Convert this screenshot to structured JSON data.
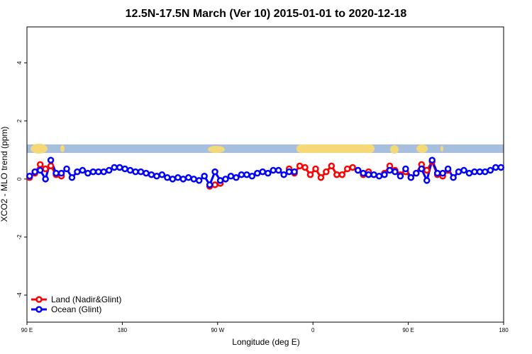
{
  "chart_data": {
    "type": "line",
    "title": "12.5N-17.5N March (Ver 10)   2015-01-01 to 2020-12-18",
    "x_label": "Longitude (deg E)",
    "y_label": "XCO2 - MLO trend (ppm)",
    "xlim": [
      90,
      540
    ],
    "ylim": [
      -4.93,
      5.24
    ],
    "xticks": [
      {
        "value": 90,
        "label": "90 E"
      },
      {
        "value": 180,
        "label": "180"
      },
      {
        "value": 270,
        "label": "90 W"
      },
      {
        "value": 360,
        "label": "0"
      },
      {
        "value": 450,
        "label": "90 E"
      },
      {
        "value": 540,
        "label": "180"
      }
    ],
    "yticks": [
      -4,
      -2,
      0,
      2,
      4
    ],
    "legend": "bottom-left",
    "x": [
      92.5,
      97.5,
      102.5,
      107.5,
      112.5,
      117.5,
      122.5,
      127.5,
      132.5,
      137.5,
      142.5,
      147.5,
      152.5,
      157.5,
      162.5,
      167.5,
      172.5,
      177.5,
      182.5,
      187.5,
      192.5,
      197.5,
      202.5,
      207.5,
      212.5,
      217.5,
      222.5,
      227.5,
      232.5,
      237.5,
      242.5,
      247.5,
      252.5,
      257.5,
      262.5,
      267.5,
      272.5,
      277.5,
      282.5,
      287.5,
      292.5,
      297.5,
      302.5,
      307.5,
      312.5,
      317.5,
      322.5,
      327.5,
      332.5,
      337.5,
      342.5,
      347.5,
      352.5,
      357.5,
      362.5,
      367.5,
      372.5,
      377.5,
      382.5,
      387.5,
      392.5,
      397.5,
      402.5,
      407.5,
      412.5,
      417.5,
      422.5,
      427.5,
      432.5,
      437.5,
      442.5,
      447.5,
      452.5,
      457.5,
      462.5,
      467.5,
      472.5,
      477.5,
      482.5,
      487.5,
      492.5,
      497.5,
      502.5,
      507.5,
      512.5,
      517.5,
      522.5,
      527.5,
      532.5,
      537.5
    ],
    "series": [
      {
        "name": "Land (Nadir&Glint)",
        "color": "#ff0000",
        "values": [
          0.05,
          0.2,
          0.5,
          0.35,
          0.45,
          0.15,
          0.1,
          null,
          null,
          null,
          null,
          null,
          null,
          null,
          null,
          null,
          null,
          null,
          null,
          null,
          null,
          null,
          null,
          null,
          null,
          null,
          null,
          null,
          null,
          null,
          null,
          null,
          null,
          null,
          -0.25,
          -0.2,
          -0.15,
          null,
          null,
          null,
          null,
          null,
          null,
          null,
          null,
          null,
          null,
          null,
          null,
          0.35,
          0.2,
          0.45,
          0.4,
          0.15,
          0.35,
          0.05,
          0.25,
          0.45,
          0.15,
          0.15,
          0.35,
          0.4,
          0.3,
          0.15,
          0.25,
          null,
          null,
          0.2,
          0.45,
          0.3,
          0.15,
          0.25,
          0.05,
          0.2,
          0.5,
          0.3,
          0.6,
          0.15,
          0.1,
          0.3,
          null,
          null,
          null,
          null,
          null,
          null,
          null,
          null,
          null,
          null
        ]
      },
      {
        "name": "Ocean (Glint)",
        "color": "#0000ff",
        "values": [
          0.1,
          0.25,
          0.3,
          0.0,
          0.65,
          0.2,
          0.2,
          0.35,
          0.05,
          0.25,
          0.3,
          0.2,
          0.25,
          0.25,
          0.25,
          0.3,
          0.4,
          0.4,
          0.35,
          0.3,
          0.25,
          0.25,
          0.2,
          0.15,
          0.1,
          0.15,
          0.05,
          0.0,
          0.05,
          0.0,
          0.05,
          0.0,
          -0.05,
          0.1,
          -0.2,
          0.25,
          -0.05,
          0.0,
          0.1,
          0.05,
          0.15,
          0.15,
          0.1,
          0.2,
          0.25,
          0.2,
          0.3,
          0.3,
          0.15,
          0.25,
          0.25,
          null,
          null,
          null,
          null,
          null,
          null,
          null,
          null,
          null,
          null,
          null,
          0.3,
          0.2,
          0.15,
          0.15,
          0.1,
          0.15,
          0.3,
          0.25,
          0.1,
          0.35,
          0.05,
          0.2,
          0.35,
          -0.05,
          0.65,
          0.2,
          0.2,
          0.35,
          0.05,
          0.25,
          0.3,
          0.2,
          0.25,
          0.25,
          0.25,
          0.3,
          0.4,
          0.4
        ]
      }
    ]
  }
}
